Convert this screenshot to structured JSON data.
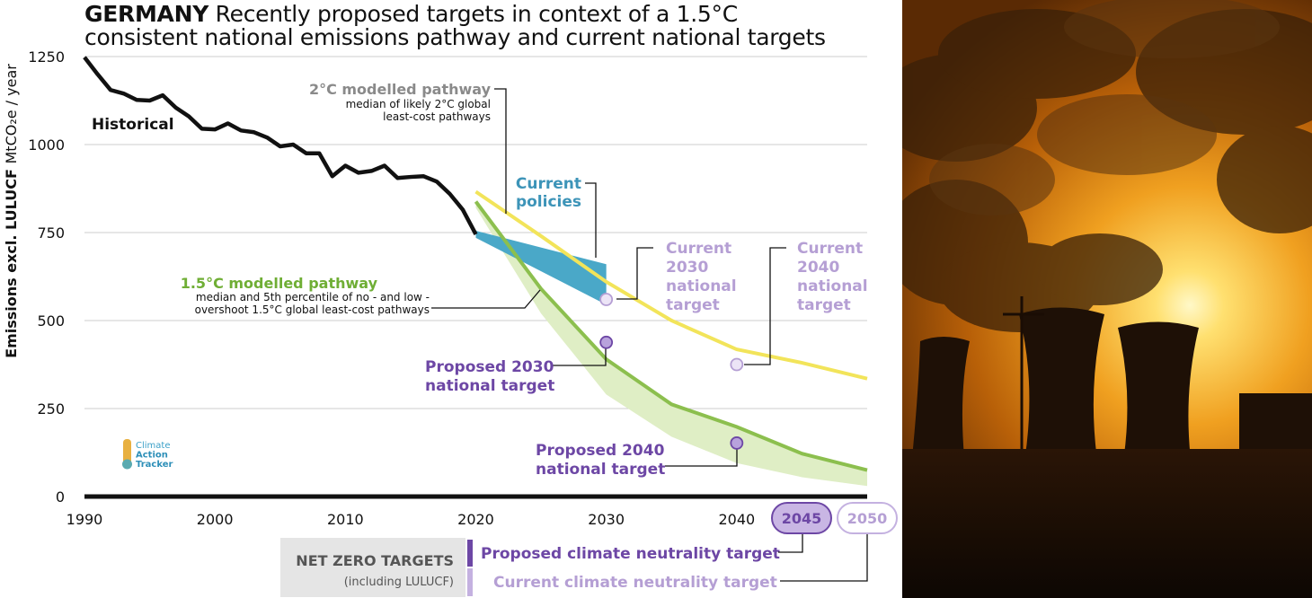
{
  "header": {
    "country": "GERMANY",
    "title_rest": "Recently proposed targets in context of a 1.5°C",
    "title_line2": "consistent national emissions pathway and current national targets"
  },
  "colors": {
    "historical": "#111111",
    "current_policies": "#4aa8c8",
    "pathway_2c": "#f2e45a",
    "pathway_15c": "#8cbf4e",
    "pathway_15c_band": "#dfeec5",
    "proposed": "#6d47a5",
    "current_target": "#b59fd4",
    "grid": "#cccccc",
    "label_gray": "#8a8a8a"
  },
  "logo": {
    "lines": [
      "Climate",
      "Action",
      "Tracker"
    ]
  },
  "chart_data": {
    "type": "line",
    "ylabel_bold": "Emissions excl. LULUCF",
    "ylabel_rest": "MtCO₂e / year",
    "xlim": [
      1990,
      2050
    ],
    "ylim": [
      0,
      1250
    ],
    "xticks": [
      1990,
      2000,
      2010,
      2020,
      2030,
      2040
    ],
    "yticks": [
      0,
      250,
      500,
      750,
      1000,
      1250
    ],
    "grid": true,
    "series": [
      {
        "name": "Historical",
        "x": [
          1990,
          1991,
          1992,
          1993,
          1994,
          1995,
          1996,
          1997,
          1998,
          1999,
          2000,
          2001,
          2002,
          2003,
          2004,
          2005,
          2006,
          2007,
          2008,
          2009,
          2010,
          2011,
          2012,
          2013,
          2014,
          2015,
          2016,
          2017,
          2018,
          2019,
          2020
        ],
        "y": [
          1248,
          1200,
          1155,
          1145,
          1127,
          1125,
          1140,
          1105,
          1080,
          1045,
          1043,
          1060,
          1040,
          1035,
          1020,
          995,
          1000,
          975,
          975,
          910,
          940,
          920,
          925,
          940,
          905,
          908,
          910,
          895,
          860,
          815,
          745
        ]
      },
      {
        "name": "2°C modelled pathway",
        "note": "median of likely 2°C global least-cost pathways",
        "x": [
          2020,
          2025,
          2030,
          2035,
          2040,
          2045,
          2050
        ],
        "y": [
          866,
          740,
          610,
          500,
          418,
          380,
          335
        ]
      },
      {
        "name": "Current policies",
        "x": [
          2020,
          2030
        ],
        "upper": [
          755,
          660
        ],
        "lower": [
          735,
          545
        ]
      },
      {
        "name": "1.5°C modelled pathway",
        "note": "median and 5th percentile of no - and low - overshoot 1.5°C global least-cost pathways",
        "x": [
          2020,
          2025,
          2030,
          2035,
          2040,
          2045,
          2050
        ],
        "median": [
          838,
          590,
          390,
          262,
          198,
          122,
          75
        ],
        "p5": [
          820,
          520,
          290,
          170,
          95,
          55,
          30
        ]
      }
    ],
    "targets": [
      {
        "label": "Current 2030 national target",
        "year": 2030,
        "value": 560,
        "kind": "current"
      },
      {
        "label": "Proposed 2030 national target",
        "year": 2030,
        "value": 438,
        "kind": "proposed"
      },
      {
        "label": "Current 2040 national target",
        "year": 2040,
        "value": 375,
        "kind": "current"
      },
      {
        "label": "Proposed 2040 national target",
        "year": 2040,
        "value": 152,
        "kind": "proposed"
      }
    ],
    "labels": {
      "historical": "Historical",
      "pathway_2c_title": "2°C modelled pathway",
      "pathway_2c_sub1": "median of likely 2°C global",
      "pathway_2c_sub2": "least-cost pathways",
      "current_policies_1": "Current",
      "current_policies_2": "policies",
      "pathway_15c_title": "1.5°C modelled pathway",
      "pathway_15c_sub1": "median and 5th percentile of no - and low -",
      "pathway_15c_sub2": "overshoot 1.5°C global least-cost pathways",
      "cur2030": [
        "Current",
        "2030",
        "national",
        "target"
      ],
      "cur2040": [
        "Current",
        "2040",
        "national",
        "target"
      ],
      "prop2030": [
        "Proposed 2030",
        "national target"
      ],
      "prop2040": [
        "Proposed 2040",
        "national target"
      ]
    }
  },
  "net_zero": {
    "title": "NET ZERO TARGETS",
    "subtitle": "(including LULUCF)",
    "proposed_label": "Proposed climate neutrality target",
    "current_label": "Current climate neutrality target",
    "proposed_year": "2045",
    "current_year": "2050"
  }
}
